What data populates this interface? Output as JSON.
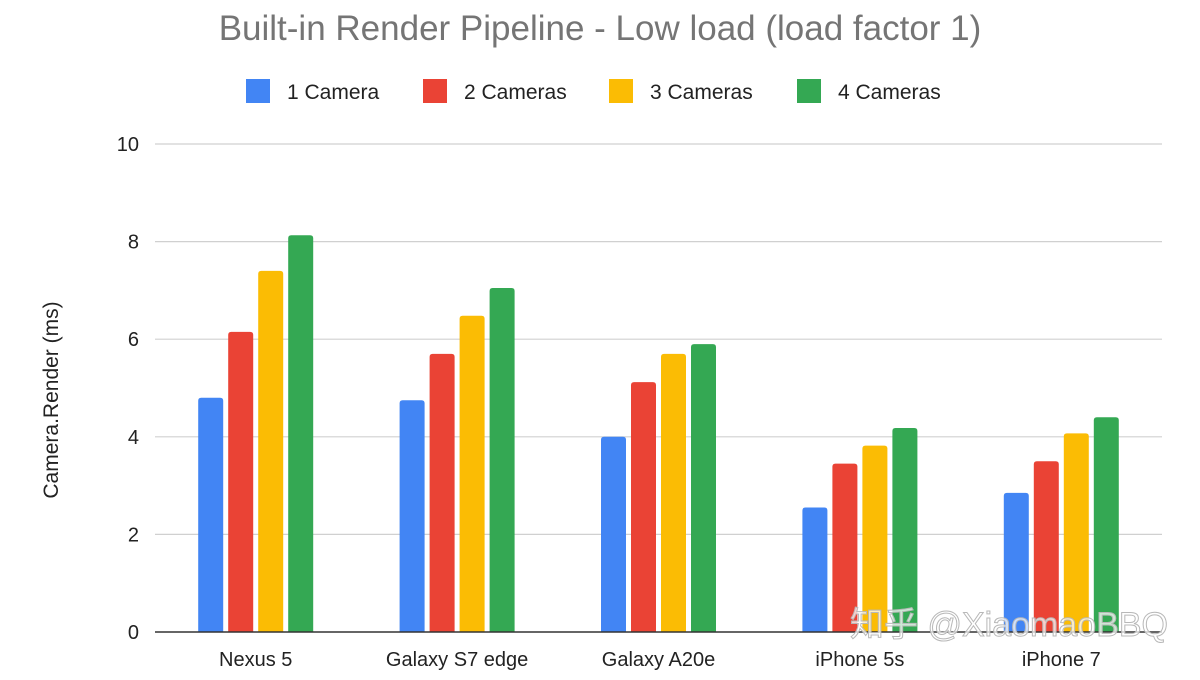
{
  "chart_data": {
    "type": "bar",
    "title": "Built-in Render Pipeline - Low load (load factor 1)",
    "xlabel": "",
    "ylabel": "Camera.Render (ms)",
    "ylim": [
      0,
      10
    ],
    "yticks": [
      "0",
      "2",
      "4",
      "6",
      "8",
      "10"
    ],
    "categories": [
      "Nexus 5",
      "Galaxy S7 edge",
      "Galaxy A20e",
      "iPhone 5s",
      "iPhone 7"
    ],
    "series": [
      {
        "name": "1 Camera",
        "color": "#4285f4",
        "values": [
          4.8,
          4.75,
          4.0,
          2.55,
          2.85
        ]
      },
      {
        "name": "2 Cameras",
        "color": "#ea4335",
        "values": [
          6.15,
          5.7,
          5.12,
          3.45,
          3.5
        ]
      },
      {
        "name": "3 Cameras",
        "color": "#fbbc04",
        "values": [
          7.4,
          6.48,
          5.7,
          3.82,
          4.07
        ]
      },
      {
        "name": "4 Cameras",
        "color": "#34a853",
        "values": [
          8.13,
          7.05,
          5.9,
          4.18,
          4.4
        ]
      }
    ],
    "grid": true,
    "legend_position": "top"
  },
  "watermark": "知乎 @XiaomaoBBQ"
}
